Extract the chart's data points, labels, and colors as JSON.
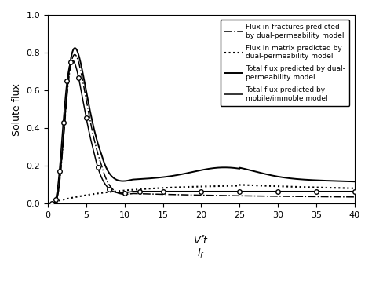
{
  "ylabel": "Solute flux",
  "xlim": [
    0,
    40
  ],
  "ylim": [
    0,
    1
  ],
  "yticks": [
    0,
    0.2,
    0.4,
    0.6,
    0.8,
    1
  ],
  "xticks": [
    0,
    5,
    10,
    15,
    20,
    25,
    30,
    35,
    40
  ],
  "legend_labels": [
    "Flux in fractures predicted\nby dual-permeability model",
    "Flux in matrix predicted by\ndual-permeability model",
    "Total flux predicted by dual-\npermeability model",
    "Total flux predicted by\nmobile/immoble model"
  ],
  "background_color": "#ffffff",
  "line_color": "#000000",
  "t_circles": [
    0.5,
    1.0,
    1.5,
    2.0,
    2.5,
    3.0,
    4.0,
    5.0,
    6.5,
    8.0,
    10.0,
    12.0,
    15.0,
    20.0,
    25.0,
    30.0,
    35.0,
    40.0
  ]
}
